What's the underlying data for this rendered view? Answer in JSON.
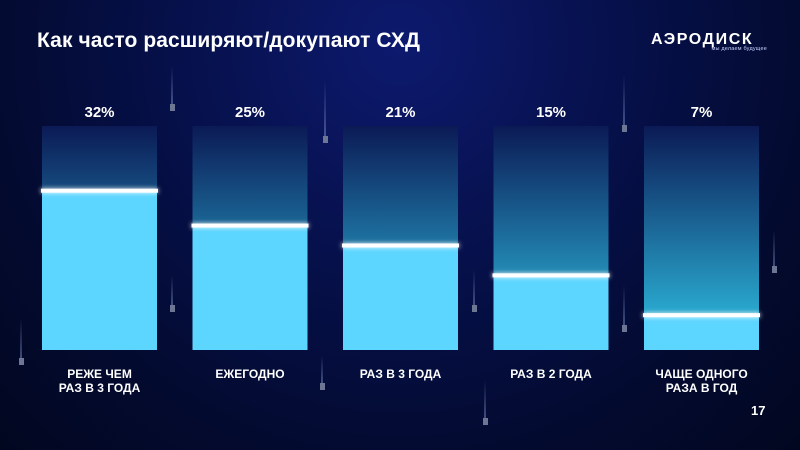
{
  "slide": {
    "title": "Как часто расширяют/докупают СХД",
    "page_number": "17"
  },
  "logo": {
    "name": "АЭРОДИСК",
    "tagline": "мы делаем будущее"
  },
  "colors": {
    "bar_fill": "#5cd5ff",
    "bar_top": "#2fc4e6",
    "column_top": "#0b1a55",
    "marker_line": "#ffffff"
  },
  "chart_data": {
    "type": "bar",
    "title": "Как часто расширяют/докупают СХД",
    "categories": [
      [
        "РЕЖЕ ЧЕМ",
        "РАЗ В 3 ГОДА"
      ],
      [
        "ЕЖЕГОДНО"
      ],
      [
        "РАЗ В 3 ГОДА"
      ],
      [
        "РАЗ В 2 ГОДА"
      ],
      [
        "ЧАЩЕ ОДНОГО",
        "РАЗА В ГОД"
      ]
    ],
    "values": [
      32,
      25,
      21,
      15,
      7
    ],
    "value_labels": [
      "32%",
      "25%",
      "21%",
      "15%",
      "7%"
    ],
    "unit": "%",
    "ylim": [
      0,
      45
    ],
    "grid": false,
    "legend": "none"
  }
}
